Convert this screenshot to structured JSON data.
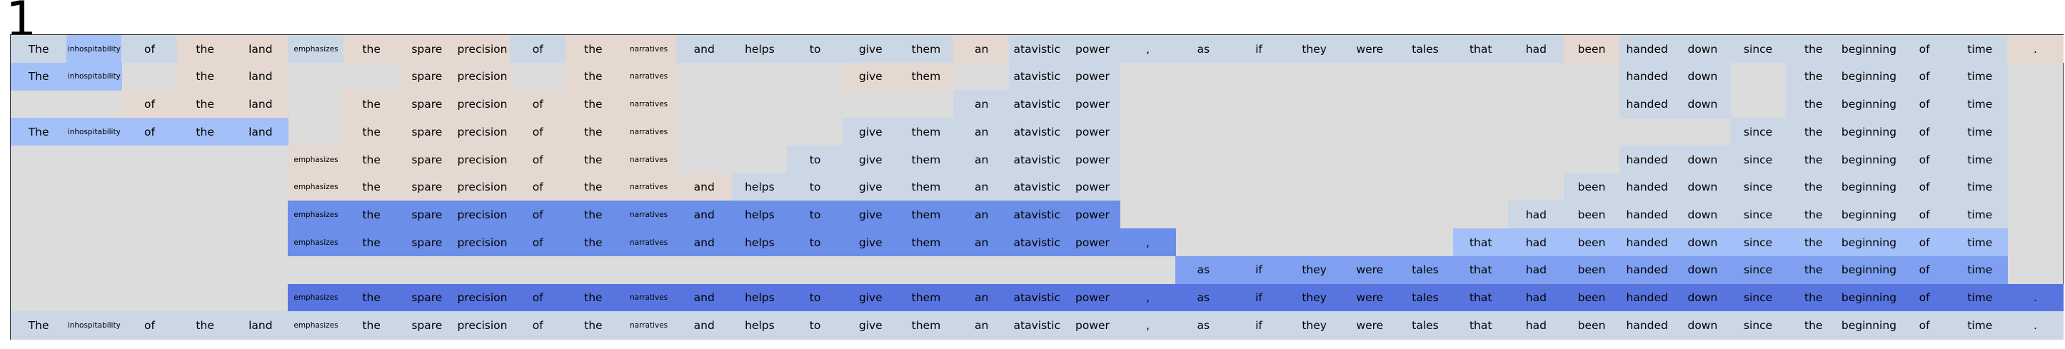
{
  "panel_label": "1",
  "tokens": [
    "The",
    "inhospitability",
    "of",
    "the",
    "land",
    "emphasizes",
    "the",
    "spare",
    "precision",
    "of",
    "the",
    "narratives",
    "and",
    "helps",
    "to",
    "give",
    "them",
    "an",
    "atavistic",
    "power",
    ",",
    "as",
    "if",
    "they",
    "were",
    "tales",
    "that",
    "had",
    "been",
    "handed",
    "down",
    "since",
    "the",
    "beginning",
    "of",
    "time",
    "."
  ],
  "colors": {
    "background": "#dcdcdc",
    "beige": "#e5d8d0",
    "pale_blue": "#ccd7e6",
    "light_blue": "#a4c0f8",
    "mid_blue": "#7f9ff0",
    "blue": "#6b8ee8",
    "dark_blue": "#5875df"
  },
  "rows": [
    {
      "shade": [
        "pale_blue",
        "light_blue",
        "pale_blue",
        "beige",
        "beige",
        "pale_blue",
        "beige",
        "beige",
        "beige",
        "pale_blue",
        "beige",
        "beige",
        "pale_blue",
        "pale_blue",
        "pale_blue",
        "pale_blue",
        "pale_blue",
        "beige",
        "pale_blue",
        "pale_blue",
        "pale_blue",
        "pale_blue",
        "pale_blue",
        "pale_blue",
        "pale_blue",
        "pale_blue",
        "pale_blue",
        "pale_blue",
        "beige",
        "pale_blue",
        "pale_blue",
        "pale_blue",
        "pale_blue",
        "pale_blue",
        "pale_blue",
        "pale_blue",
        "beige"
      ]
    },
    {
      "shade": [
        "light_blue",
        "light_blue",
        null,
        "beige",
        "beige",
        null,
        null,
        "beige",
        "beige",
        null,
        "beige",
        "beige",
        null,
        null,
        null,
        "beige",
        "beige",
        null,
        "pale_blue",
        "pale_blue",
        null,
        null,
        null,
        null,
        null,
        null,
        null,
        null,
        null,
        "pale_blue",
        "pale_blue",
        null,
        "pale_blue",
        "pale_blue",
        "pale_blue",
        "pale_blue",
        null
      ]
    },
    {
      "shade": [
        null,
        null,
        "beige",
        "beige",
        "beige",
        null,
        "beige",
        "beige",
        "beige",
        "beige",
        "beige",
        "beige",
        null,
        null,
        null,
        null,
        null,
        "pale_blue",
        "pale_blue",
        "pale_blue",
        null,
        null,
        null,
        null,
        null,
        null,
        null,
        null,
        null,
        "pale_blue",
        "pale_blue",
        null,
        "pale_blue",
        "pale_blue",
        "pale_blue",
        "pale_blue",
        null
      ]
    },
    {
      "shade": [
        "light_blue",
        "light_blue",
        "light_blue",
        "light_blue",
        "light_blue",
        null,
        "beige",
        "beige",
        "beige",
        "beige",
        "beige",
        "beige",
        null,
        null,
        null,
        "pale_blue",
        "pale_blue",
        "pale_blue",
        "pale_blue",
        "pale_blue",
        null,
        null,
        null,
        null,
        null,
        null,
        null,
        null,
        null,
        null,
        null,
        "pale_blue",
        "pale_blue",
        "pale_blue",
        "pale_blue",
        "pale_blue",
        null
      ]
    },
    {
      "shade": [
        null,
        null,
        null,
        null,
        null,
        "beige",
        "beige",
        "beige",
        "beige",
        "beige",
        "beige",
        "beige",
        null,
        null,
        "pale_blue",
        "pale_blue",
        "pale_blue",
        "pale_blue",
        "pale_blue",
        "pale_blue",
        null,
        null,
        null,
        null,
        null,
        null,
        null,
        null,
        null,
        "pale_blue",
        "pale_blue",
        "pale_blue",
        "pale_blue",
        "pale_blue",
        "pale_blue",
        "pale_blue",
        null
      ]
    },
    {
      "shade": [
        null,
        null,
        null,
        null,
        null,
        "beige",
        "beige",
        "beige",
        "beige",
        "beige",
        "beige",
        "beige",
        "beige",
        "pale_blue",
        "pale_blue",
        "pale_blue",
        "pale_blue",
        "pale_blue",
        "pale_blue",
        "pale_blue",
        null,
        null,
        null,
        null,
        null,
        null,
        null,
        null,
        "pale_blue",
        "pale_blue",
        "pale_blue",
        "pale_blue",
        "pale_blue",
        "pale_blue",
        "pale_blue",
        "pale_blue",
        null
      ]
    },
    {
      "shade": [
        null,
        null,
        null,
        null,
        null,
        "blue",
        "blue",
        "blue",
        "blue",
        "blue",
        "blue",
        "blue",
        "blue",
        "blue",
        "blue",
        "blue",
        "blue",
        "blue",
        "blue",
        "blue",
        null,
        null,
        null,
        null,
        null,
        null,
        null,
        "pale_blue",
        "pale_blue",
        "pale_blue",
        "pale_blue",
        "pale_blue",
        "pale_blue",
        "pale_blue",
        "pale_blue",
        "pale_blue",
        null
      ]
    },
    {
      "shade": [
        null,
        null,
        null,
        null,
        null,
        "blue",
        "blue",
        "blue",
        "blue",
        "blue",
        "blue",
        "blue",
        "blue",
        "blue",
        "blue",
        "blue",
        "blue",
        "blue",
        "blue",
        "blue",
        "blue",
        null,
        null,
        null,
        null,
        null,
        "light_blue",
        "light_blue",
        "light_blue",
        "light_blue",
        "light_blue",
        "light_blue",
        "light_blue",
        "light_blue",
        "light_blue",
        "light_blue",
        null
      ]
    },
    {
      "shade": [
        null,
        null,
        null,
        null,
        null,
        null,
        null,
        null,
        null,
        null,
        null,
        null,
        null,
        null,
        null,
        null,
        null,
        null,
        null,
        null,
        null,
        "mid_blue",
        "mid_blue",
        "mid_blue",
        "mid_blue",
        "mid_blue",
        "mid_blue",
        "mid_blue",
        "mid_blue",
        "mid_blue",
        "mid_blue",
        "mid_blue",
        "mid_blue",
        "mid_blue",
        "mid_blue",
        "mid_blue",
        null
      ]
    },
    {
      "shade": [
        null,
        null,
        null,
        null,
        null,
        "dark_blue",
        "dark_blue",
        "dark_blue",
        "dark_blue",
        "dark_blue",
        "dark_blue",
        "dark_blue",
        "dark_blue",
        "dark_blue",
        "dark_blue",
        "dark_blue",
        "dark_blue",
        "dark_blue",
        "dark_blue",
        "dark_blue",
        "dark_blue",
        "dark_blue",
        "dark_blue",
        "dark_blue",
        "dark_blue",
        "dark_blue",
        "dark_blue",
        "dark_blue",
        "dark_blue",
        "dark_blue",
        "dark_blue",
        "dark_blue",
        "dark_blue",
        "dark_blue",
        "dark_blue",
        "dark_blue",
        "dark_blue"
      ]
    },
    {
      "shade": [
        "pale_blue",
        "pale_blue",
        "pale_blue",
        "pale_blue",
        "pale_blue",
        "pale_blue",
        "pale_blue",
        "pale_blue",
        "pale_blue",
        "pale_blue",
        "pale_blue",
        "pale_blue",
        "pale_blue",
        "pale_blue",
        "pale_blue",
        "pale_blue",
        "pale_blue",
        "pale_blue",
        "pale_blue",
        "pale_blue",
        "pale_blue",
        "pale_blue",
        "pale_blue",
        "pale_blue",
        "pale_blue",
        "pale_blue",
        "pale_blue",
        "pale_blue",
        "pale_blue",
        "pale_blue",
        "pale_blue",
        "pale_blue",
        "pale_blue",
        "pale_blue",
        "pale_blue",
        "pale_blue",
        "pale_blue"
      ]
    }
  ]
}
